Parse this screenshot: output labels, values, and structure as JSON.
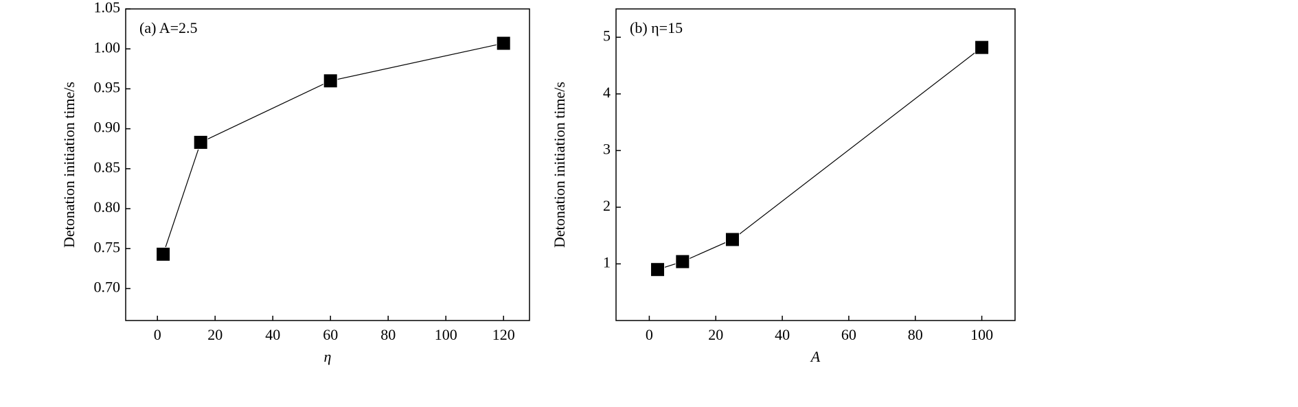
{
  "chart_data": [
    {
      "type": "line",
      "annotation": "(a) A=2.5",
      "x_label": "η",
      "y_label": "Detonation initiation time/s",
      "x": [
        2,
        15,
        60,
        120
      ],
      "series": [
        {
          "color": "#000000",
          "values": [
            0.743,
            0.883,
            0.96,
            1.007
          ]
        }
      ],
      "xlim": [
        -11,
        129
      ],
      "ylim": [
        0.66,
        1.05
      ],
      "xticks": [
        0,
        20,
        40,
        60,
        80,
        100,
        120
      ],
      "yticks": [
        {
          "value": 0.7,
          "label": "0.70"
        },
        0.75,
        {
          "value": 0.8,
          "label": "0.80"
        },
        0.85,
        {
          "value": 0.9,
          "label": "0.90"
        },
        0.95,
        {
          "value": 1.0,
          "label": "1.00"
        },
        1.05
      ]
    },
    {
      "type": "line",
      "annotation": "(b) η=15",
      "x_label": "A",
      "y_label": "Detonation initiation time/s",
      "x": [
        2.5,
        10,
        25,
        100
      ],
      "series": [
        {
          "color": "#000000",
          "values": [
            0.9,
            1.04,
            1.43,
            4.82
          ]
        }
      ],
      "xlim": [
        -10,
        110
      ],
      "ylim": [
        0,
        5.5
      ],
      "xticks": [
        0,
        20,
        40,
        60,
        80,
        100
      ],
      "yticks": [
        1,
        2,
        3,
        4,
        5
      ]
    }
  ]
}
